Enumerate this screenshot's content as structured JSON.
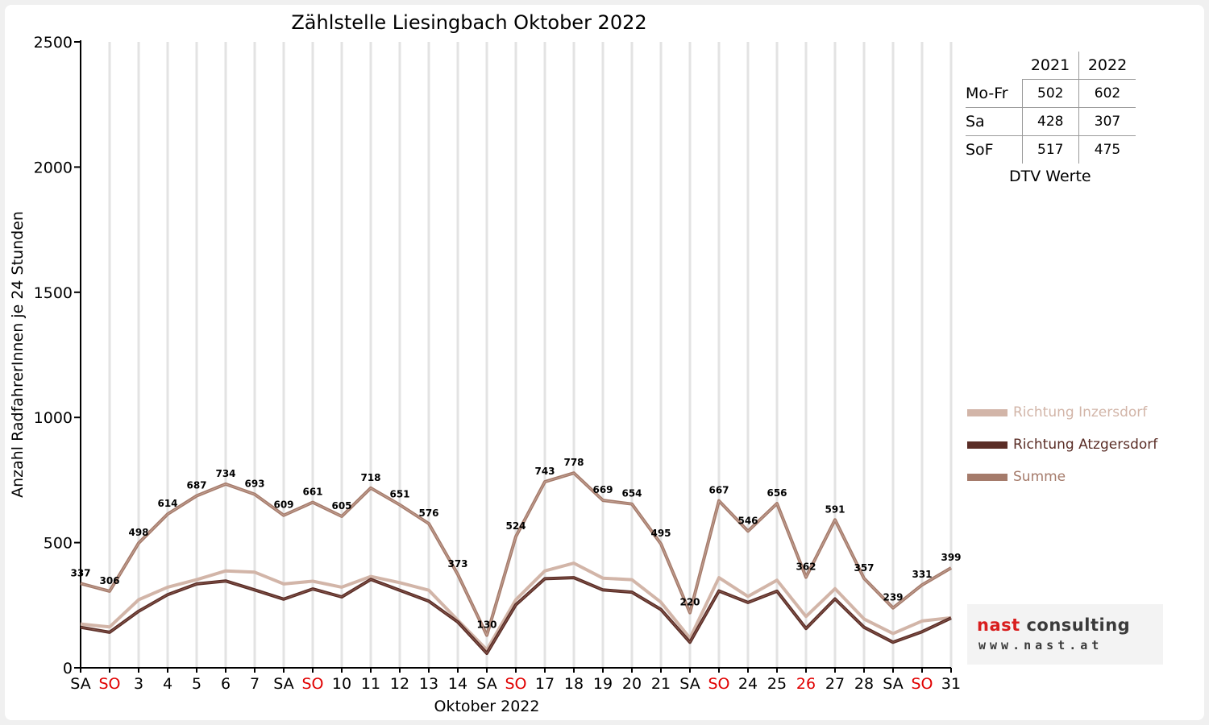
{
  "chart_data": {
    "type": "line",
    "title": "Zählstelle Liesingbach Oktober 2022",
    "xlabel": "Oktober 2022",
    "ylabel": "Anzahl RadfahrerInnen je 24 Stunden",
    "ylim": [
      0,
      2500
    ],
    "yticks": [
      0,
      500,
      1000,
      1500,
      2000,
      2500
    ],
    "grid": true,
    "categories": [
      "SA",
      "SO",
      "3",
      "4",
      "5",
      "6",
      "7",
      "SA",
      "SO",
      "10",
      "11",
      "12",
      "13",
      "14",
      "SA",
      "SO",
      "17",
      "18",
      "19",
      "20",
      "21",
      "SA",
      "SO",
      "24",
      "25",
      "26",
      "27",
      "28",
      "SA",
      "SO",
      "31"
    ],
    "red_categories": [
      1,
      8,
      15,
      22,
      25,
      29
    ],
    "series": [
      {
        "name": "Richtung Inzersdorf",
        "color": "#d2b5a8",
        "values": [
          175,
          163,
          272,
          322,
          352,
          387,
          382,
          335,
          346,
          322,
          365,
          340,
          310,
          190,
          72,
          272,
          387,
          418,
          358,
          352,
          262,
          118,
          360,
          285,
          350,
          205,
          316,
          195,
          137,
          187,
          200
        ]
      },
      {
        "name": "Richtung Atzgersdorf",
        "color": "#5a2d26",
        "values": [
          162,
          142,
          226,
          292,
          335,
          347,
          311,
          274,
          315,
          283,
          353,
          310,
          266,
          183,
          58,
          252,
          356,
          360,
          311,
          302,
          233,
          102,
          307,
          261,
          306,
          157,
          275,
          162,
          102,
          144,
          199
        ]
      },
      {
        "name": "Summe",
        "color": "#a57b6b",
        "values": [
          337,
          306,
          498,
          614,
          687,
          734,
          693,
          609,
          661,
          605,
          718,
          651,
          576,
          373,
          130,
          524,
          743,
          778,
          669,
          654,
          495,
          220,
          667,
          546,
          656,
          362,
          591,
          357,
          239,
          331,
          399
        ],
        "labels": true
      }
    ]
  },
  "dtv": {
    "years": [
      "2021",
      "2022"
    ],
    "rows": [
      {
        "label": "Mo-Fr",
        "v2021": "502",
        "v2022": "602"
      },
      {
        "label": "Sa",
        "v2021": "428",
        "v2022": "307"
      },
      {
        "label": "SoF",
        "v2021": "517",
        "v2022": "475"
      }
    ],
    "caption": "DTV Werte"
  },
  "logo": {
    "name_red": "nast",
    "name_dark": " consulting",
    "url": "www.nast.at"
  },
  "colors": {
    "sunday_red": "#e00000",
    "grid": "#e3e3e3"
  }
}
